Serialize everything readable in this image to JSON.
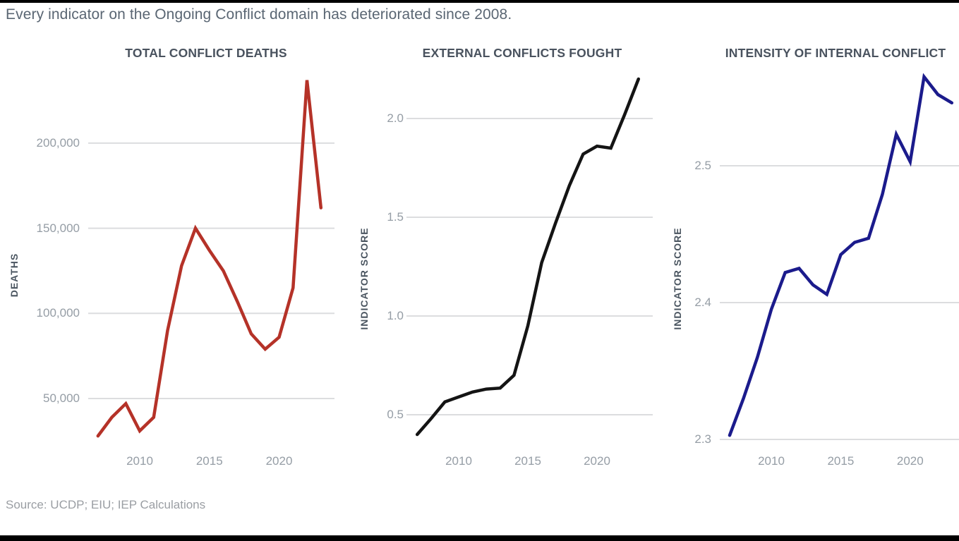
{
  "page": {
    "subtitle": "Every indicator on the Ongoing Conflict domain has deteriorated since 2008.",
    "source": "Source: UCDP; EIU; IEP Calculations"
  },
  "colors": {
    "red_series": "#b53228",
    "black_series": "#141414",
    "blue_series": "#1b1b8c",
    "gridline": "#dcdddf",
    "tick_label": "#959da5",
    "title_text": "#49525e",
    "subtitle_text": "#5a6673",
    "source_text": "#9a9ea3",
    "edge_bar": "#000000"
  },
  "chart_data": [
    {
      "type": "line",
      "title": "TOTAL CONFLICT DEATHS",
      "ylabel": "DEATHS",
      "xlabel": "",
      "legend": "none",
      "grid": "horizontal",
      "series_color": "#b53228",
      "x": [
        2007,
        2008,
        2009,
        2010,
        2011,
        2012,
        2013,
        2014,
        2015,
        2016,
        2017,
        2018,
        2019,
        2020,
        2021,
        2022,
        2023
      ],
      "values": [
        28000,
        39000,
        47000,
        31000,
        39000,
        90000,
        128000,
        150000,
        137000,
        125000,
        107000,
        88000,
        79000,
        86000,
        115000,
        237000,
        162000
      ],
      "x_ticks": [
        {
          "label": "2010",
          "year": 2010
        },
        {
          "label": "2015",
          "year": 2015
        },
        {
          "label": "2020",
          "year": 2020
        }
      ],
      "y_ticks": [
        {
          "label": "200,000",
          "value": 200000
        },
        {
          "label": "150,000",
          "value": 150000
        },
        {
          "label": "100,000",
          "value": 100000
        },
        {
          "label": "50,000",
          "value": 50000
        }
      ],
      "xlim": [
        2007,
        2023
      ],
      "ylim": [
        25000,
        240000
      ]
    },
    {
      "type": "line",
      "title": "EXTERNAL CONFLICTS FOUGHT",
      "ylabel": "INDICATOR SCORE",
      "xlabel": "",
      "legend": "none",
      "grid": "horizontal",
      "series_color": "#141414",
      "x": [
        2007,
        2008,
        2009,
        2010,
        2011,
        2012,
        2013,
        2014,
        2015,
        2016,
        2017,
        2018,
        2019,
        2020,
        2021,
        2022,
        2023
      ],
      "values": [
        0.4,
        0.48,
        0.565,
        0.59,
        0.615,
        0.63,
        0.635,
        0.7,
        0.95,
        1.27,
        1.47,
        1.66,
        1.82,
        1.86,
        1.85,
        2.02,
        2.2
      ],
      "x_ticks": [
        {
          "label": "2010",
          "year": 2010
        },
        {
          "label": "2015",
          "year": 2015
        },
        {
          "label": "2020",
          "year": 2020
        }
      ],
      "y_ticks": [
        {
          "label": "2.0",
          "value": 2.0
        },
        {
          "label": "1.5",
          "value": 1.5
        },
        {
          "label": "1.0",
          "value": 1.0
        },
        {
          "label": "0.5",
          "value": 0.5
        }
      ],
      "xlim": [
        2007,
        2023
      ],
      "ylim": [
        0.35,
        2.25
      ]
    },
    {
      "type": "line",
      "title": "INTENSITY OF INTERNAL CONFLICT",
      "ylabel": "INDICATOR SCORE",
      "xlabel": "",
      "legend": "none",
      "grid": "horizontal",
      "series_color": "#1b1b8c",
      "x": [
        2007,
        2008,
        2009,
        2010,
        2011,
        2012,
        2013,
        2014,
        2015,
        2016,
        2017,
        2018,
        2019,
        2020,
        2021,
        2022,
        2023
      ],
      "values": [
        2.303,
        2.33,
        2.36,
        2.395,
        2.422,
        2.425,
        2.413,
        2.406,
        2.435,
        2.444,
        2.447,
        2.479,
        2.523,
        2.503,
        2.565,
        2.552,
        2.546
      ],
      "x_ticks": [
        {
          "label": "2010",
          "year": 2010
        },
        {
          "label": "2015",
          "year": 2015
        },
        {
          "label": "2020",
          "year": 2020
        }
      ],
      "y_ticks": [
        {
          "label": "2.5",
          "value": 2.5
        },
        {
          "label": "2.4",
          "value": 2.4
        },
        {
          "label": "2.3",
          "value": 2.3
        }
      ],
      "xlim": [
        2007,
        2023
      ],
      "ylim": [
        2.3,
        2.57
      ]
    }
  ]
}
